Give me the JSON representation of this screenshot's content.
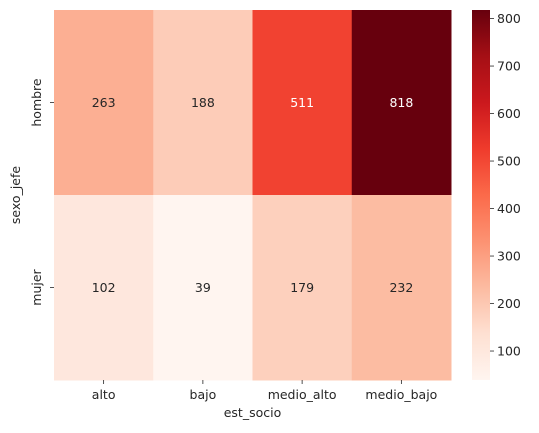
{
  "chart_data": {
    "type": "heatmap",
    "title": "",
    "xlabel": "est_socio",
    "ylabel": "sexo_jefe",
    "x_categories": [
      "alto",
      "bajo",
      "medio_alto",
      "medio_bajo"
    ],
    "y_categories": [
      "hombre",
      "mujer"
    ],
    "values": [
      [
        263,
        188,
        511,
        818
      ],
      [
        102,
        39,
        179,
        232
      ]
    ],
    "colorbar": {
      "min": 39,
      "max": 818,
      "ticks": [
        100,
        200,
        300,
        400,
        500,
        600,
        700,
        800
      ]
    },
    "colormap": "Reds",
    "colormap_stops": [
      "#fff5f0",
      "#fee0d2",
      "#fcbba1",
      "#fc9272",
      "#fb6a4a",
      "#ef3b2c",
      "#cb181d",
      "#a50f15",
      "#67000d"
    ],
    "annotation_colors": {
      "dark": "#262626",
      "light": "#ffffff"
    }
  }
}
